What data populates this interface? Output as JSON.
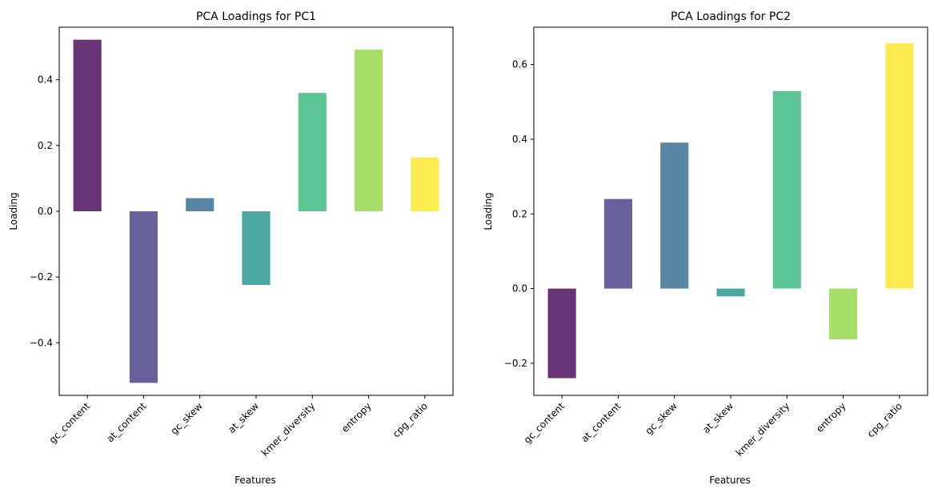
{
  "chart_data": [
    {
      "type": "bar",
      "title": "PCA Loadings for PC1",
      "xlabel": "Features",
      "ylabel": "Loading",
      "categories": [
        "gc_content",
        "at_content",
        "gc_skew",
        "at_skew",
        "kmer_diversity",
        "entropy",
        "cpg_ratio"
      ],
      "values": [
        0.522,
        -0.522,
        0.04,
        -0.224,
        0.36,
        0.492,
        0.164
      ],
      "colors": [
        "#440154",
        "#443983",
        "#31688e",
        "#21918c",
        "#35b779",
        "#90d743",
        "#fde725"
      ],
      "ylim": [
        -0.56,
        0.56
      ],
      "yticks": [
        -0.4,
        -0.2,
        0.0,
        0.2,
        0.4
      ],
      "ytick_labels": [
        "−0.4",
        "−0.2",
        "0.0",
        "0.2",
        "0.4"
      ],
      "grid": false,
      "legend": "none"
    },
    {
      "type": "bar",
      "title": "PCA Loadings for PC2",
      "xlabel": "Features",
      "ylabel": "Loading",
      "categories": [
        "gc_content",
        "at_content",
        "gc_skew",
        "at_skew",
        "kmer_diversity",
        "entropy",
        "cpg_ratio"
      ],
      "values": [
        -0.24,
        0.24,
        0.391,
        -0.021,
        0.529,
        -0.136,
        0.657
      ],
      "colors": [
        "#440154",
        "#443983",
        "#31688e",
        "#21918c",
        "#35b779",
        "#90d743",
        "#fde725"
      ],
      "ylim": [
        -0.286,
        0.7
      ],
      "yticks": [
        -0.2,
        0.0,
        0.2,
        0.4,
        0.6
      ],
      "ytick_labels": [
        "−0.2",
        "0.0",
        "0.2",
        "0.4",
        "0.6"
      ],
      "grid": false,
      "legend": "none"
    }
  ]
}
